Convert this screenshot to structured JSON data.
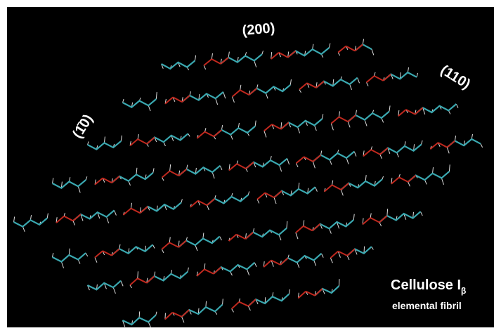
{
  "labels": {
    "plane_200": "(200)",
    "plane_110": "(110)",
    "plane_1bar10": "(1̄0)"
  },
  "caption": {
    "title": "Cellulose I",
    "subscript": "β",
    "subtitle": "elemental fibril"
  }
}
